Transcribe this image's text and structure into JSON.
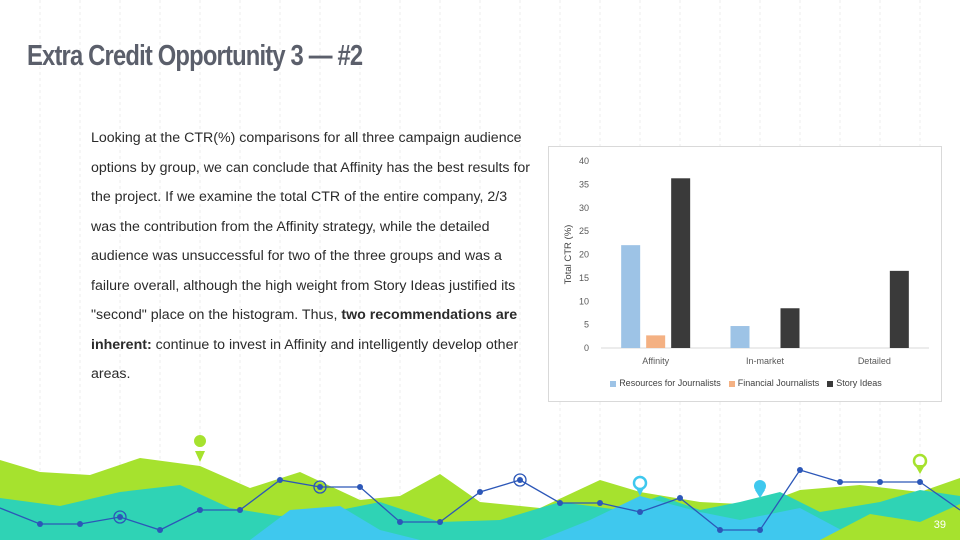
{
  "slide": {
    "title": "Extra Credit Opportunity 3 — #2",
    "page_number": "39"
  },
  "body": {
    "part1": "Looking at the CTR(%) comparisons for all three campaign audience options by group, we can conclude that Affinity has the best results for the project. If we examine the total CTR of the entire company, 2/3 was the contribution from the Affinity strategy, while the detailed audience was unsuccessful for two of the three groups and was a failure overall, although the high weight from Story Ideas justified its \"second\" place on the histogram. Thus, ",
    "bold": "two recommendations are inherent:",
    "part2": " continue to invest in Affinity and intelligently develop other areas."
  },
  "chart_data": {
    "type": "bar",
    "categories": [
      "Affinity",
      "In-market",
      "Detailed"
    ],
    "series": [
      {
        "name": "Resources for Journalists",
        "values": [
          22,
          4.7,
          0
        ],
        "color": "#9dc3e6"
      },
      {
        "name": "Financial Journalists",
        "values": [
          2.7,
          0,
          0
        ],
        "color": "#f4b183"
      },
      {
        "name": "Story Ideas",
        "values": [
          36.3,
          8.5,
          16.5
        ],
        "color": "#3a3a3a"
      }
    ],
    "title": "",
    "xlabel": "",
    "ylabel": "Total CTR (%)",
    "ylim": [
      0,
      40
    ],
    "yticks": [
      "0",
      "5",
      "10",
      "15",
      "20",
      "25",
      "30",
      "35",
      "40"
    ],
    "grid": false,
    "legend_position": "bottom"
  },
  "colors": {
    "title": "#5b5f6b",
    "lime": "#a6e22e",
    "teal": "#2fd3b5",
    "cyan": "#3fc8ee",
    "line_blue": "#2c57b8"
  }
}
